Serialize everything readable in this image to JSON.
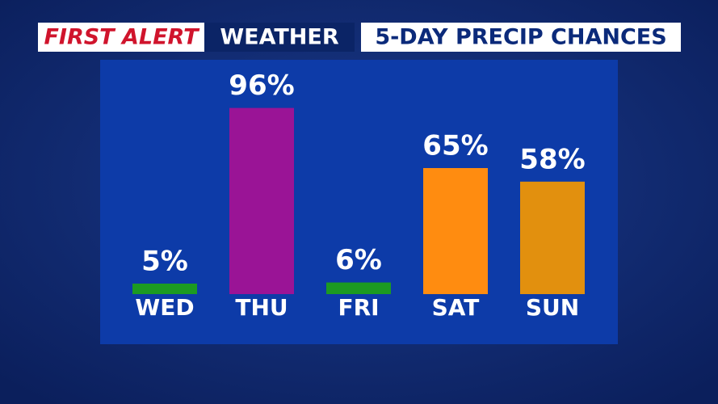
{
  "chart_data": {
    "type": "bar",
    "brand": "FIRST ALERT",
    "brand_suffix": "WEATHER",
    "title": "5-DAY PRECIP CHANCES",
    "categories": [
      "WED",
      "THU",
      "FRI",
      "SAT",
      "SUN"
    ],
    "values": [
      5,
      96,
      6,
      65,
      58
    ],
    "value_labels": [
      "5%",
      "96%",
      "6%",
      "65%",
      "58%"
    ],
    "colors": [
      "#1c9a22",
      "#9a1496",
      "#1c9a22",
      "#ff8c10",
      "#e2900e"
    ]
  }
}
